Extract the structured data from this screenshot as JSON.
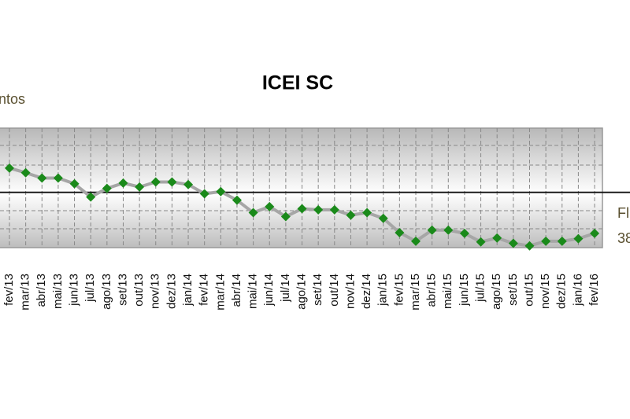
{
  "chart_data": {
    "type": "line",
    "title": "ICEI SC",
    "left_label": "ntos",
    "right_labels": [
      "Fl",
      "38"
    ],
    "categories": [
      "fev/13",
      "mar/13",
      "abr/13",
      "mai/13",
      "jun/13",
      "jul/13",
      "ago/13",
      "set/13",
      "out/13",
      "nov/13",
      "dez/13",
      "jan/14",
      "fev/14",
      "mar/14",
      "abr/14",
      "mai/14",
      "jun/14",
      "jul/14",
      "ago/14",
      "set/14",
      "out/14",
      "nov/14",
      "dez/14",
      "jan/15",
      "fev/15",
      "mar/15",
      "abr/15",
      "mai/15",
      "jun/15",
      "jul/15",
      "ago/15",
      "set/15",
      "out/15",
      "nov/15",
      "dez/15",
      "jan/16",
      "fev/16"
    ],
    "values": [
      56.8,
      55.5,
      54.0,
      54.0,
      52.4,
      48.7,
      51.1,
      52.6,
      51.5,
      52.9,
      52.9,
      52.2,
      49.6,
      50.2,
      47.8,
      44.3,
      46.0,
      43.2,
      45.4,
      45.1,
      45.1,
      43.6,
      44.3,
      42.7,
      38.7,
      36.3,
      39.4,
      39.4,
      38.5,
      36.1,
      37.2,
      35.7,
      35.0,
      36.3,
      36.3,
      37.0,
      38.5
    ],
    "color": "#a6a6a6",
    "marker_color": "#1a8a1a",
    "ylim": [
      34.5,
      68
    ],
    "reference_line": 50,
    "grid": true
  }
}
